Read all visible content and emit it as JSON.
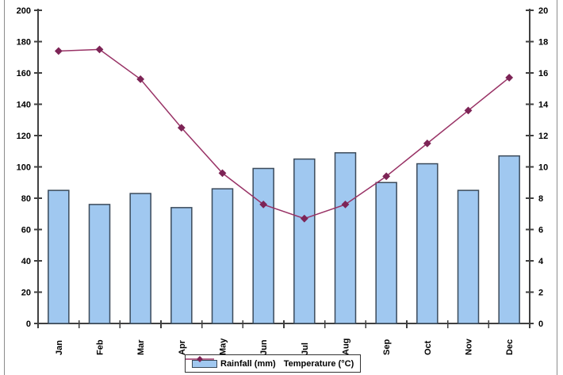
{
  "chart_data": {
    "type": "bar",
    "subtype": "column-with-secondary-line",
    "title": "",
    "categories": [
      "Jan",
      "Feb",
      "Mar",
      "Apr",
      "May",
      "Jun",
      "Jul",
      "Aug",
      "Sep",
      "Oct",
      "Nov",
      "Dec"
    ],
    "series": [
      {
        "name": "Rainfall (mm)",
        "type": "bar",
        "axis": "left",
        "values": [
          85,
          76,
          83,
          74,
          86,
          99,
          105,
          109,
          90,
          102,
          85,
          107
        ]
      },
      {
        "name": "Temperature (°C)",
        "type": "line",
        "axis": "right",
        "values": [
          17.4,
          17.5,
          15.6,
          12.5,
          9.6,
          7.6,
          6.7,
          7.6,
          9.4,
          11.5,
          13.6,
          15.7
        ]
      }
    ],
    "left_axis": {
      "min": 0,
      "max": 200,
      "step": 20
    },
    "right_axis": {
      "min": 0,
      "max": 20,
      "step": 2
    },
    "grid": false,
    "legend_position": "bottom"
  },
  "colors": {
    "bar_fill": "#A0C8F0",
    "bar_border": "#3B4A5A",
    "line": "#993366",
    "marker": "#7D2456",
    "axis": "#404040",
    "legend_border": "#333333",
    "frame": "#8C8C8C"
  }
}
